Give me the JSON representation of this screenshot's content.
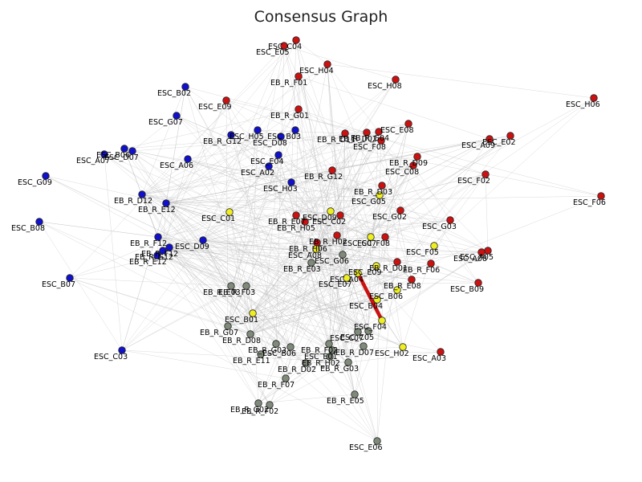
{
  "title": "Consensus Graph",
  "colors": {
    "red": "#cc1111",
    "blue": "#1111cc",
    "yellow": "#eeee22",
    "gray": "#7f8a7a",
    "edge": "#bbbbbb",
    "strong_edge": "#cc1111",
    "node_stroke": "#222222"
  },
  "nodes": [
    {
      "id": "ESC_C04",
      "group": "red"
    },
    {
      "id": "ESC_E05",
      "group": "red"
    },
    {
      "id": "ESC_H04",
      "group": "red"
    },
    {
      "id": "EB_R_F01",
      "group": "red"
    },
    {
      "id": "ESC_H08",
      "group": "red"
    },
    {
      "id": "ESC_H06",
      "group": "red"
    },
    {
      "id": "ESC_E09",
      "group": "red"
    },
    {
      "id": "EB_R_G01",
      "group": "red"
    },
    {
      "id": "ESC_E08",
      "group": "red"
    },
    {
      "id": "EB_R_D11",
      "group": "red"
    },
    {
      "id": "EB_R_D02",
      "group": "red"
    },
    {
      "id": "EB_R_G04",
      "group": "red"
    },
    {
      "id": "ESC_F08",
      "group": "red"
    },
    {
      "id": "ESC_A09",
      "group": "red"
    },
    {
      "id": "ESC_E02",
      "group": "red"
    },
    {
      "id": "EB_R_D09",
      "group": "red"
    },
    {
      "id": "ESC_C08",
      "group": "red"
    },
    {
      "id": "EB_R_G12",
      "group": "red"
    },
    {
      "id": "ESC_F02",
      "group": "red"
    },
    {
      "id": "EB_R_D03",
      "group": "red"
    },
    {
      "id": "ESC_F06",
      "group": "red"
    },
    {
      "id": "ESC_G02",
      "group": "red"
    },
    {
      "id": "EB_R_E07",
      "group": "red"
    },
    {
      "id": "ESC_C02",
      "group": "red"
    },
    {
      "id": "ESC_G03",
      "group": "red"
    },
    {
      "id": "EB_R_H05",
      "group": "red"
    },
    {
      "id": "EB_R_H02",
      "group": "red"
    },
    {
      "id": "ESC_F08b",
      "label": "ESC_F08",
      "group": "red"
    },
    {
      "id": "EB_R_H06",
      "group": "red"
    },
    {
      "id": "ESC_A05",
      "group": "red"
    },
    {
      "id": "ESC_A08",
      "group": "red"
    },
    {
      "id": "EB_R_D01",
      "group": "red"
    },
    {
      "id": "EB_R_F06",
      "group": "red"
    },
    {
      "id": "EB_R_E08",
      "group": "red"
    },
    {
      "id": "ESC_B09",
      "group": "red"
    },
    {
      "id": "ESC_A03",
      "group": "red"
    },
    {
      "id": "ESC_B02",
      "group": "blue"
    },
    {
      "id": "ESC_G07",
      "group": "blue"
    },
    {
      "id": "EB_R_G12b",
      "label": "EB_R_G12",
      "group": "blue"
    },
    {
      "id": "ESC_H05",
      "group": "blue"
    },
    {
      "id": "ESC_B03",
      "group": "blue"
    },
    {
      "id": "ESC_D08",
      "group": "blue"
    },
    {
      "id": "ESC_A07",
      "group": "blue"
    },
    {
      "id": "ESC_B06",
      "group": "blue"
    },
    {
      "id": "ESC_D07",
      "group": "blue"
    },
    {
      "id": "ESC_E04",
      "group": "blue"
    },
    {
      "id": "ESC_A06",
      "group": "blue"
    },
    {
      "id": "ESC_A02",
      "group": "blue"
    },
    {
      "id": "ESC_G09",
      "group": "blue"
    },
    {
      "id": "ESC_H03",
      "group": "blue"
    },
    {
      "id": "EB_R_D12",
      "group": "blue"
    },
    {
      "id": "EB_R_E12",
      "group": "blue"
    },
    {
      "id": "ESC_B08",
      "group": "blue"
    },
    {
      "id": "EB_R_F12",
      "group": "blue"
    },
    {
      "id": "ESC_D09",
      "group": "blue"
    },
    {
      "id": "EB_R_F12b",
      "label": "EB_R_F12",
      "group": "blue"
    },
    {
      "id": "EB_R_G12c",
      "label": "EB_R_G12",
      "group": "blue"
    },
    {
      "id": "EB_R_E12b",
      "label": "EB_R_E12",
      "group": "blue"
    },
    {
      "id": "ESC_B07",
      "group": "blue"
    },
    {
      "id": "ESC_C03",
      "group": "blue"
    },
    {
      "id": "ESC_G05",
      "group": "yellow"
    },
    {
      "id": "ESC_C01",
      "group": "yellow"
    },
    {
      "id": "ESC_D09b",
      "label": "ESC_D09",
      "group": "yellow"
    },
    {
      "id": "ESC_F05",
      "group": "yellow"
    },
    {
      "id": "ESC_C07",
      "group": "yellow"
    },
    {
      "id": "ESC_A04",
      "group": "yellow"
    },
    {
      "id": "ESC_E09b",
      "label": "ESC_E09",
      "group": "yellow"
    },
    {
      "id": "ESC_E07",
      "group": "yellow"
    },
    {
      "id": "ESC_B06b",
      "label": "ESC_B06",
      "group": "yellow"
    },
    {
      "id": "ESC_B04",
      "group": "yellow"
    },
    {
      "id": "ESC_B01",
      "group": "yellow"
    },
    {
      "id": "ESC_F04",
      "group": "yellow"
    },
    {
      "id": "ESC_H02",
      "group": "yellow"
    },
    {
      "id": "ESC_A08b",
      "label": "ESC_A08",
      "group": "yellow"
    },
    {
      "id": "ESC_G06",
      "group": "gray"
    },
    {
      "id": "EB_R_E03",
      "group": "gray"
    },
    {
      "id": "EB_R_E03b",
      "label": "EB_R_E03",
      "group": "gray"
    },
    {
      "id": "EB_R_F03",
      "group": "gray"
    },
    {
      "id": "EB_R_G07",
      "group": "gray"
    },
    {
      "id": "EB_R_D08",
      "group": "gray"
    },
    {
      "id": "EB_R_G03",
      "group": "gray"
    },
    {
      "id": "EB_R_F02",
      "group": "gray"
    },
    {
      "id": "EB_R_E11",
      "group": "gray"
    },
    {
      "id": "ESC_B06c",
      "label": "ESC_B06",
      "group": "gray"
    },
    {
      "id": "ESC_E01",
      "group": "gray"
    },
    {
      "id": "EB_R_H02b",
      "label": "EB_R_H02",
      "group": "gray"
    },
    {
      "id": "EB_R_D02b",
      "label": "EB_R_D02",
      "group": "gray"
    },
    {
      "id": "EB_R_G03b",
      "label": "EB_R_G03",
      "group": "gray"
    },
    {
      "id": "EB_R_D07",
      "group": "gray"
    },
    {
      "id": "ESC_C05",
      "group": "gray"
    },
    {
      "id": "ESC_C07b",
      "label": "ESC_C07",
      "group": "gray"
    },
    {
      "id": "EB_R_F07",
      "group": "gray"
    },
    {
      "id": "EB_R_E05",
      "group": "gray"
    },
    {
      "id": "EB_R_G02",
      "group": "gray"
    },
    {
      "id": "EB_R_F02b",
      "label": "EB_R_F02",
      "group": "gray"
    },
    {
      "id": "ESC_E06",
      "group": "gray"
    }
  ],
  "edges": [
    {
      "source": "ESC_F04",
      "target": "ESC_A04",
      "strong": true
    }
  ]
}
